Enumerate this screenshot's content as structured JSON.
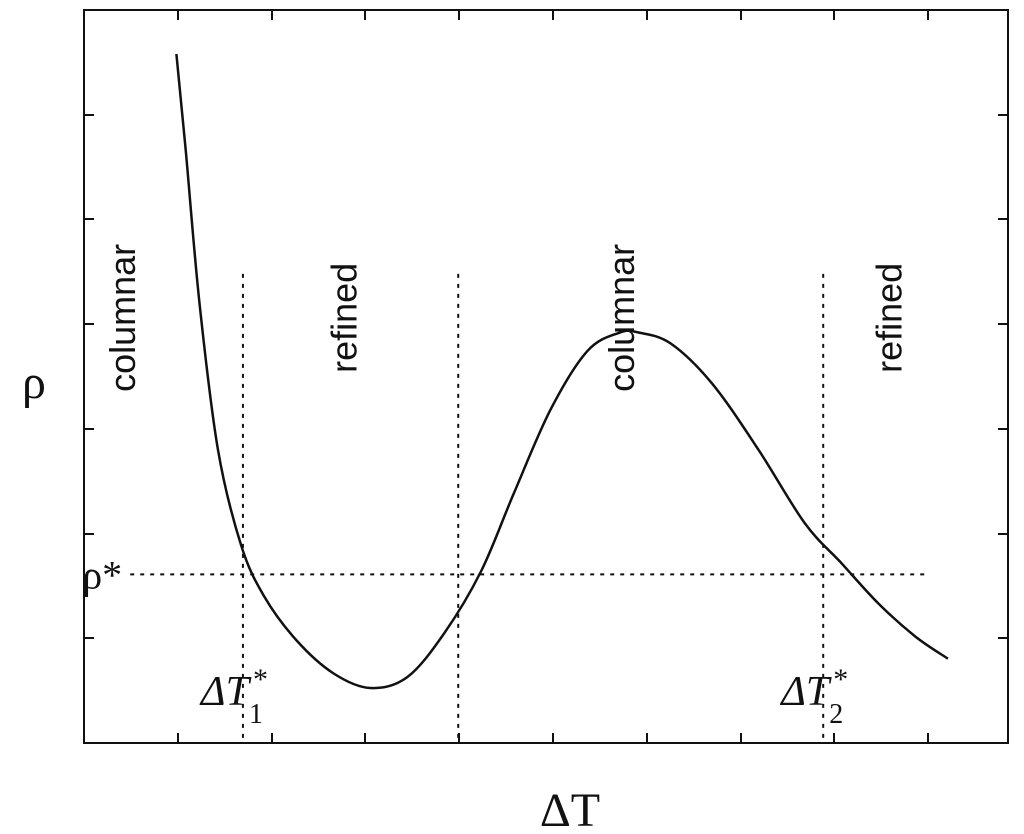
{
  "chart_data": {
    "type": "line",
    "title": "",
    "xlabel": "ΔT",
    "ylabel": "ρ",
    "xlim": [
      0,
      10
    ],
    "ylim": [
      0,
      10
    ],
    "x_ticks_count": 9,
    "y_ticks_count": 6,
    "grid": false,
    "series": [
      {
        "curve": [
          [
            1.0,
            9.4
          ],
          [
            1.1,
            8.1
          ],
          [
            1.25,
            6.0
          ],
          [
            1.45,
            4.0
          ],
          [
            1.7,
            2.7
          ],
          [
            1.95,
            2.0
          ],
          [
            2.3,
            1.4
          ],
          [
            2.7,
            0.95
          ],
          [
            3.1,
            0.75
          ],
          [
            3.5,
            0.9
          ],
          [
            3.9,
            1.5
          ],
          [
            4.3,
            2.35
          ],
          [
            4.65,
            3.4
          ],
          [
            5.05,
            4.55
          ],
          [
            5.45,
            5.35
          ],
          [
            5.8,
            5.6
          ],
          [
            6.0,
            5.6
          ],
          [
            6.35,
            5.45
          ],
          [
            6.8,
            4.9
          ],
          [
            7.3,
            4.0
          ],
          [
            7.8,
            3.0
          ],
          [
            8.2,
            2.45
          ],
          [
            8.6,
            1.9
          ],
          [
            9.0,
            1.45
          ],
          [
            9.35,
            1.15
          ]
        ]
      }
    ],
    "threshold": {
      "label": "ρ*",
      "y": 2.3,
      "x_range": [
        0.5,
        9.15
      ]
    },
    "vertical_lines": [
      {
        "x": 1.72,
        "y_top": 6.4,
        "label_main": "ΔT",
        "label_sub": "1",
        "label_sup": "*"
      },
      {
        "x": 4.05,
        "y_top": 6.4
      },
      {
        "x": 8.0,
        "y_top": 6.4,
        "label_main": "ΔT",
        "label_sub": "2",
        "label_sup": "*"
      }
    ],
    "regions": [
      {
        "label": "columnar",
        "x": 0.55,
        "y": 5.8
      },
      {
        "label": "refined",
        "x": 2.95,
        "y": 5.8
      },
      {
        "label": "columnar",
        "x": 5.95,
        "y": 5.8
      },
      {
        "label": "refined",
        "x": 8.85,
        "y": 5.8
      }
    ]
  }
}
